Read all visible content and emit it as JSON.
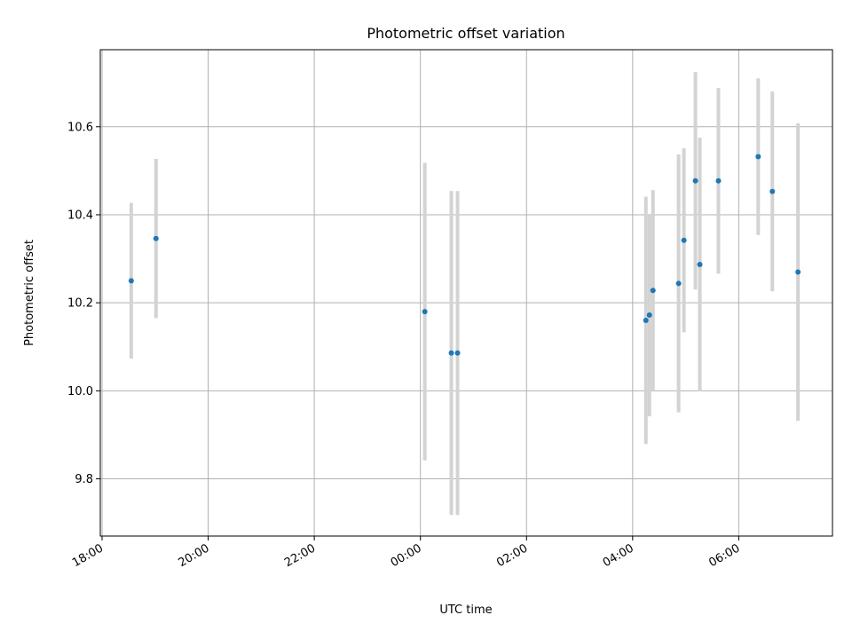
{
  "chart_data": {
    "type": "scatter",
    "title": "Photometric offset variation",
    "xlabel": "UTC time",
    "ylabel": "Photometric offset",
    "x_ticks": [
      "18:00",
      "20:00",
      "22:00",
      "00:00",
      "02:00",
      "04:00",
      "06:00"
    ],
    "y_ticks": [
      "9.8",
      "10.0",
      "10.2",
      "10.4",
      "10.6"
    ],
    "xlim": [
      "17:58",
      "07:46"
    ],
    "ylim": [
      9.67,
      10.775
    ],
    "grid": true,
    "colors": {
      "point": "#1f77b4",
      "errorbar": "#d3d3d3"
    },
    "points": [
      {
        "time": "18:33",
        "y": 10.25,
        "ylow": 10.073,
        "yhigh": 10.427
      },
      {
        "time": "19:01",
        "y": 10.346,
        "ylow": 10.165,
        "yhigh": 10.527
      },
      {
        "time": "00:05",
        "y": 10.18,
        "ylow": 9.842,
        "yhigh": 10.518
      },
      {
        "time": "00:35",
        "y": 10.086,
        "ylow": 9.718,
        "yhigh": 10.454
      },
      {
        "time": "00:42",
        "y": 10.086,
        "ylow": 9.718,
        "yhigh": 10.454
      },
      {
        "time": "04:15",
        "y": 10.16,
        "ylow": 9.879,
        "yhigh": 10.441
      },
      {
        "time": "04:19",
        "y": 10.172,
        "ylow": 9.942,
        "yhigh": 10.402
      },
      {
        "time": "04:23",
        "y": 10.228,
        "ylow": 10.0,
        "yhigh": 10.456
      },
      {
        "time": "04:52",
        "y": 10.244,
        "ylow": 9.951,
        "yhigh": 10.537
      },
      {
        "time": "04:58",
        "y": 10.342,
        "ylow": 10.133,
        "yhigh": 10.551
      },
      {
        "time": "05:11",
        "y": 10.477,
        "ylow": 10.23,
        "yhigh": 10.724
      },
      {
        "time": "05:16",
        "y": 10.287,
        "ylow": 9.999,
        "yhigh": 10.575
      },
      {
        "time": "05:37",
        "y": 10.477,
        "ylow": 10.266,
        "yhigh": 10.688
      },
      {
        "time": "06:22",
        "y": 10.532,
        "ylow": 10.354,
        "yhigh": 10.71
      },
      {
        "time": "06:38",
        "y": 10.453,
        "ylow": 10.226,
        "yhigh": 10.68
      },
      {
        "time": "07:07",
        "y": 10.27,
        "ylow": 9.932,
        "yhigh": 10.608
      }
    ]
  }
}
